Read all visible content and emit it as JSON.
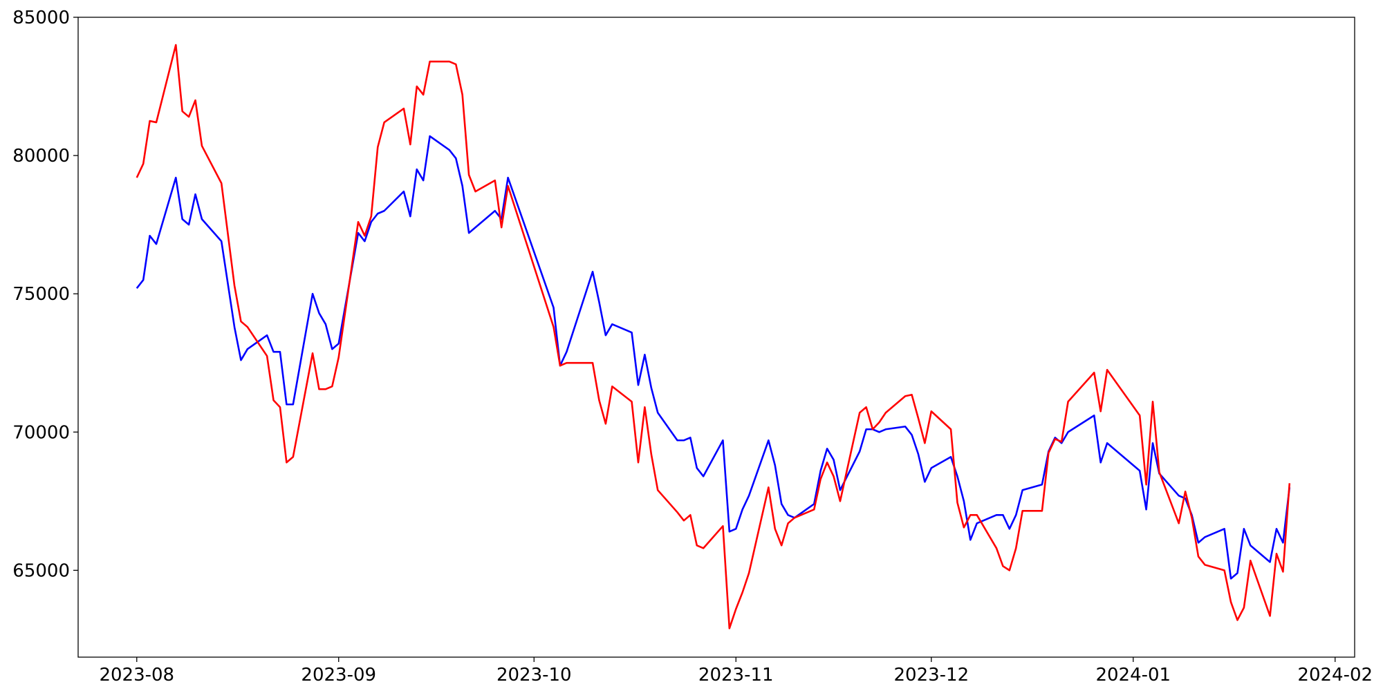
{
  "chart_data": {
    "type": "line",
    "x": [
      19570,
      19571,
      19572,
      19573,
      19576,
      19577,
      19578,
      19579,
      19580,
      19583,
      19585,
      19586,
      19587,
      19590,
      19591,
      19592,
      19593,
      19594,
      19597,
      19598,
      19599,
      19600,
      19601,
      19604,
      19605,
      19606,
      19607,
      19608,
      19611,
      19612,
      19613,
      19614,
      19615,
      19618,
      19619,
      19620,
      19621,
      19622,
      19625,
      19626,
      19627,
      19634,
      19635,
      19636,
      19640,
      19641,
      19642,
      19643,
      19646,
      19647,
      19648,
      19649,
      19650,
      19653,
      19654,
      19655,
      19656,
      19657,
      19660,
      19661,
      19662,
      19663,
      19664,
      19667,
      19668,
      19669,
      19670,
      19671,
      19674,
      19675,
      19676,
      19677,
      19678,
      19681,
      19682,
      19683,
      19684,
      19685,
      19688,
      19689,
      19690,
      19691,
      19692,
      19695,
      19696,
      19697,
      19698,
      19699,
      19702,
      19703,
      19704,
      19705,
      19706,
      19709,
      19710,
      19711,
      19712,
      19713,
      19717,
      19718,
      19719,
      19724,
      19725,
      19726,
      19727,
      19730,
      19731,
      19732,
      19733,
      19734,
      19737,
      19738,
      19739,
      19740,
      19741,
      19744,
      19745,
      19746,
      19747
    ],
    "series": [
      {
        "color": "#0000ff",
        "values": [
          75200,
          75500,
          77100,
          76800,
          79200,
          77700,
          77500,
          78600,
          77700,
          76900,
          73800,
          72600,
          73000,
          73500,
          72900,
          72900,
          71000,
          71000,
          75000,
          74300,
          73900,
          73000,
          73200,
          77200,
          76900,
          77600,
          77900,
          78000,
          78700,
          77800,
          79500,
          79100,
          80700,
          80200,
          79900,
          78900,
          77200,
          77400,
          78000,
          77700,
          79200,
          74500,
          72400,
          72900,
          75800,
          74700,
          73500,
          73900,
          73600,
          71700,
          72800,
          71600,
          70700,
          69700,
          69700,
          69800,
          68700,
          68400,
          69700,
          66400,
          66500,
          67200,
          67700,
          69700,
          68800,
          67400,
          67000,
          66900,
          67400,
          68600,
          69400,
          69000,
          67900,
          69300,
          70100,
          70100,
          70000,
          70100,
          70200,
          69900,
          69200,
          68200,
          68700,
          69100,
          68400,
          67500,
          66100,
          66700,
          67000,
          67000,
          66500,
          67000,
          67900,
          68100,
          69300,
          69800,
          69600,
          70000,
          70600,
          68900,
          69600,
          68600,
          67200,
          69600,
          68500,
          67700,
          67600,
          67000,
          66000,
          66200,
          66500,
          64700,
          64900,
          66500,
          65900,
          65300,
          66500,
          66000,
          68000
        ]
      },
      {
        "color": "#ff0000",
        "values": [
          79200,
          79700,
          81250,
          81200,
          84000,
          81600,
          81400,
          82000,
          80350,
          79000,
          75300,
          74000,
          73800,
          72750,
          71150,
          70900,
          68900,
          69100,
          72850,
          71550,
          71550,
          71650,
          72700,
          77600,
          77100,
          77800,
          80300,
          81200,
          81700,
          80400,
          82500,
          82200,
          83400,
          83400,
          83300,
          82200,
          79300,
          78700,
          79100,
          77400,
          78900,
          73800,
          72400,
          72500,
          72500,
          71150,
          70300,
          71650,
          71100,
          68900,
          70900,
          69200,
          67900,
          67100,
          66800,
          67000,
          65900,
          65800,
          66600,
          62900,
          63600,
          64200,
          64900,
          68000,
          66500,
          65900,
          66700,
          66900,
          67200,
          68300,
          68900,
          68400,
          67500,
          70700,
          70900,
          70100,
          70350,
          70700,
          71300,
          71350,
          70500,
          69600,
          70750,
          70100,
          67450,
          66550,
          67000,
          67000,
          65800,
          65150,
          65000,
          65800,
          67150,
          67150,
          69250,
          69750,
          69650,
          71100,
          72150,
          70750,
          72250,
          70600,
          68100,
          71100,
          68550,
          66700,
          67850,
          66900,
          65500,
          65200,
          65000,
          63850,
          63200,
          63650,
          65350,
          63350,
          65600,
          64950,
          68150
        ]
      }
    ],
    "xlim": [
      19561,
      19757
    ],
    "xticks": [
      {
        "value": 19570,
        "label": "2023-08"
      },
      {
        "value": 19601,
        "label": "2023-09"
      },
      {
        "value": 19631,
        "label": "2023-10"
      },
      {
        "value": 19662,
        "label": "2023-11"
      },
      {
        "value": 19692,
        "label": "2023-12"
      },
      {
        "value": 19723,
        "label": "2024-01"
      },
      {
        "value": 19754,
        "label": "2024-02"
      }
    ],
    "ylim": [
      61860,
      85000
    ],
    "yticks": [
      65000,
      70000,
      75000,
      80000,
      85000
    ]
  }
}
